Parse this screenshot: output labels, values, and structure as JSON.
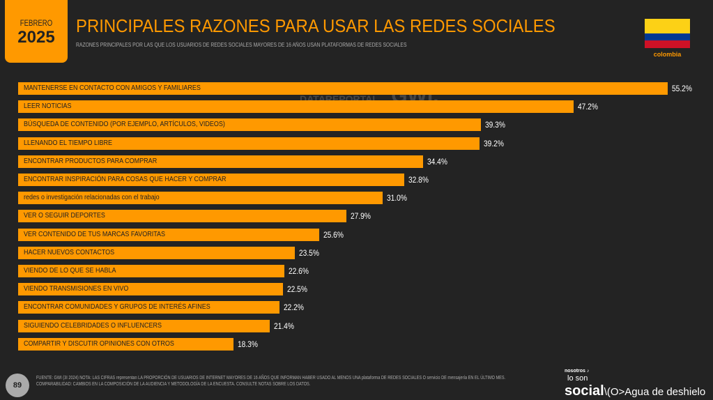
{
  "header": {
    "month": "FEBRERO",
    "year": "2025",
    "title": "PRINCIPALES RAZONES PARA USAR LAS REDES SOCIALES",
    "subtitle": "RAZONES PRINCIPALES POR LAS QUE LOS USUARIOS DE REDES SOCIALES MAYORES DE 16 AÑOS USAN PLATAFORMAS DE REDES SOCIALES",
    "country": "colombia"
  },
  "watermark": {
    "left": "DATAREPORTAL",
    "right": "GWI."
  },
  "colors": {
    "bar": "#ff9900",
    "background": "#232323",
    "flag": [
      "#fcd116",
      "#003893",
      "#ce1126"
    ]
  },
  "chart_data": {
    "type": "bar",
    "orientation": "horizontal",
    "categories": [
      "MANTENERSE EN CONTACTO CON AMIGOS Y FAMILIARES",
      "LEER NOTICIAS",
      "BÚSQUEDA DE CONTENIDO (POR EJEMPLO, ARTÍCULOS, VIDEOS)",
      "LLENANDO EL TIEMPO LIBRE",
      "ENCONTRAR PRODUCTOS PARA COMPRAR",
      "ENCONTRAR INSPIRACIÓN PARA COSAS QUE HACER Y COMPRAR",
      "redes o investigación relacionadas con el trabajo",
      "VER O SEGUIR DEPORTES",
      "VER CONTENIDO DE TUS MARCAS FAVORITAS",
      "HACER NUEVOS CONTACTOS",
      "VIENDO DE LO QUE SE HABLA",
      "VIENDO TRANSMISIONES EN VIVO",
      "ENCONTRAR COMUNIDADES Y GRUPOS DE INTERÉS AFINES",
      "SIGUIENDO CELEBRIDADES O INFLUENCERS",
      "COMPARTIR Y DISCUTIR OPINIONES CON OTROS"
    ],
    "values": [
      55.2,
      47.2,
      39.3,
      39.2,
      34.4,
      32.8,
      31.0,
      27.9,
      25.6,
      23.5,
      22.6,
      22.5,
      22.2,
      21.4,
      18.3
    ],
    "value_labels": [
      "55.2%",
      "47.2%",
      "39.3%",
      "39.2%",
      "34.4%",
      "32.8%",
      "31.0%",
      "27.9%",
      "25.6%",
      "23.5%",
      "22.6%",
      "22.5%",
      "22.2%",
      "21.4%",
      "18.3%"
    ]
  },
  "footer": {
    "page": "89",
    "note1": "FUENTE: GWI (3I 2024) NOTA: LAS CIFRAS representan LA PROPORCIÓN DE USUARIOS DE INTERNET MAYORES DE 16 AÑOS QUE INFORMAN HABER USADO AL MENOS UNA plataforma DE REDES SOCIALES O servicio DE mensajería EN EL ÚLTIMO MES.",
    "note2": "COMPARABILIDAD: CAMBIOS EN LA COMPOSICIÓN DE LA AUDIENCIA Y METODOLOGÍA DE LA ENCUESTA. CONSULTE NOTAS SOBRE LOS DATOS.",
    "brand_top": "nosotros ♪",
    "brand_mid": "lo son",
    "brand_main": "social",
    "brand_tail": "\\(O>Agua de deshielo"
  }
}
